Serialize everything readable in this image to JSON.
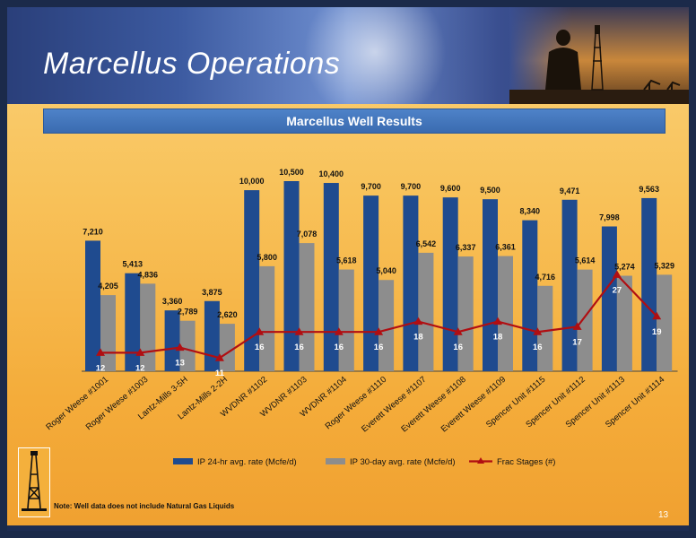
{
  "header": {
    "title": "Marcellus Operations"
  },
  "subheader": {
    "title": "Marcellus Well Results"
  },
  "note": "Note: Well data does not include Natural Gas Liquids",
  "page_number": "13",
  "colors": {
    "bar24": "#1f4b8f",
    "bar30": "#8d8d8d",
    "frac": "#b00e12",
    "subbar": "#3a6bb0"
  },
  "chart_data": {
    "type": "bar",
    "title": "Marcellus Well Results",
    "categories": [
      "Roger Weese #1001",
      "Roger Weese #1003",
      "Lantz-Mills 3-5H",
      "Lantz-Mills 2-2H",
      "WVDNR #1102",
      "WVDNR #1103",
      "WVDNR #1104",
      "Roger Weese #1110",
      "Everett Weese #1107",
      "Everett Weese #1108",
      "Everett Weese #1109",
      "Spencer Unit #1115",
      "Spencer Unit #1112",
      "Spencer Unit #1113",
      "Spencer Unit #1114"
    ],
    "series": [
      {
        "name": "IP 24-hr avg. rate (Mcfe/d)",
        "type": "bar",
        "values": [
          7210,
          5413,
          3360,
          3875,
          10000,
          10500,
          10400,
          9700,
          9700,
          9600,
          9500,
          8340,
          9471,
          7998,
          9563
        ],
        "labels": [
          "7,210",
          "5,413",
          "3,360",
          "3,875",
          "10,000",
          "10,500",
          "10,400",
          "9,700",
          "9,700",
          "9,600",
          "9,500",
          "8,340",
          "9,471",
          "7,998",
          "9,563"
        ]
      },
      {
        "name": "IP 30-day avg. rate (Mcfe/d)",
        "type": "bar",
        "values": [
          4205,
          4836,
          2789,
          2620,
          5800,
          7078,
          5618,
          5040,
          6542,
          6337,
          6361,
          4716,
          5614,
          5274,
          5329
        ],
        "labels": [
          "4,205",
          "4,836",
          "2,789",
          "2,620",
          "5,800",
          "7,078",
          "5,618",
          "5,040",
          "6,542",
          "6,337",
          "6,361",
          "4,716",
          "5,614",
          "5,274",
          "5,329"
        ]
      },
      {
        "name": "Frac Stages (#)",
        "type": "line",
        "values": [
          12,
          12,
          13,
          11,
          16,
          16,
          16,
          16,
          18,
          16,
          18,
          16,
          17,
          27,
          19
        ],
        "labels": [
          "12",
          "12",
          "13",
          "11",
          "16",
          "16",
          "16",
          "16",
          "18",
          "16",
          "18",
          "16",
          "17",
          "27",
          "19"
        ]
      }
    ],
    "legend": "bottom",
    "grid": false
  }
}
